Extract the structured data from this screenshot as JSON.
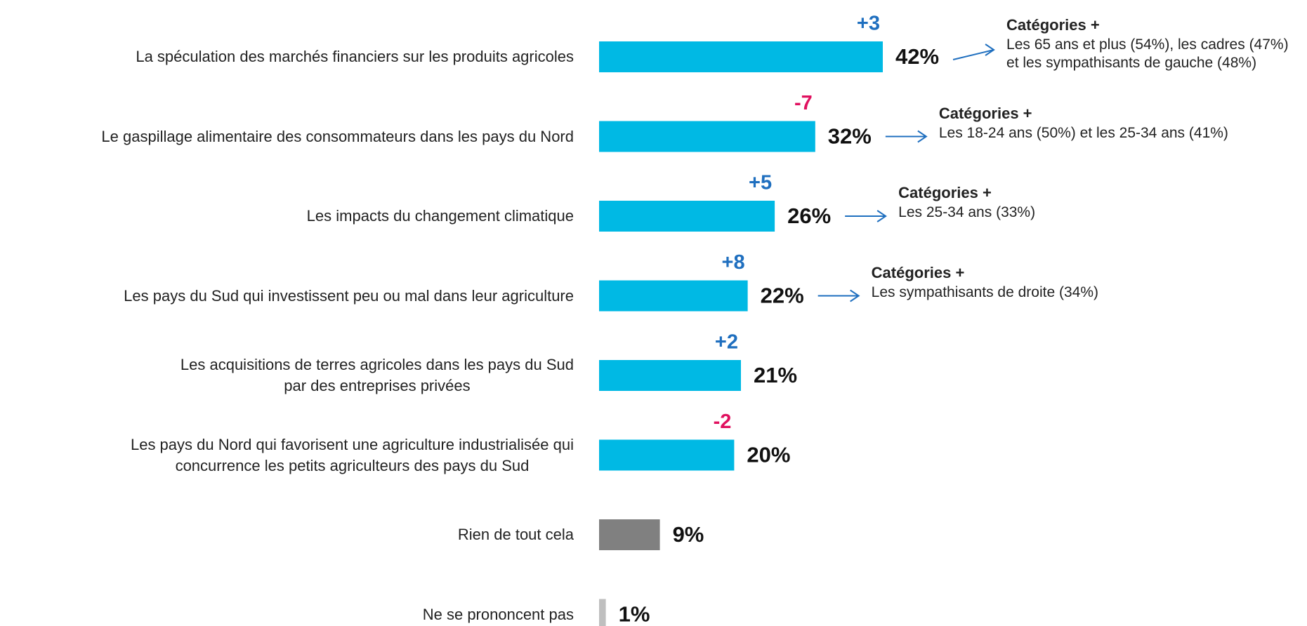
{
  "chart_data": {
    "type": "bar",
    "orientation": "horizontal",
    "categories": [
      "La spéculation des marchés financiers sur les produits agricoles",
      "Le gaspillage alimentaire des consommateurs dans les pays du Nord",
      "Les impacts du changement climatique",
      "Les pays du Sud qui investissent peu ou mal dans leur agriculture",
      "Les acquisitions de terres agricoles dans les pays du Sud\npar des entreprises privées",
      "Les pays du Nord qui favorisent une agriculture industrialisée qui\nconcurrence les petits agriculteurs des pays du Sud",
      "Rien de tout cela",
      "Ne se prononcent pas"
    ],
    "values": [
      42,
      32,
      26,
      22,
      21,
      20,
      9,
      1
    ],
    "value_labels": [
      "42%",
      "32%",
      "26%",
      "22%",
      "21%",
      "20%",
      "9%",
      "1%"
    ],
    "colors": [
      "#00b9e4",
      "#00b9e4",
      "#00b9e4",
      "#00b9e4",
      "#00b9e4",
      "#00b9e4",
      "#808080",
      "#bfbfbf"
    ],
    "changes": [
      "+3",
      "-7",
      "+5",
      "+8",
      "+2",
      "-2",
      null,
      null
    ],
    "change_colors": {
      "positive": "#1f6fbf",
      "negative": "#e0115f"
    },
    "xlim": [
      0,
      42
    ],
    "notes": [
      {
        "title": "Catégories +",
        "text": "Les 65 ans et plus (54%), les cadres (47%)\net les sympathisants de gauche (48%)"
      },
      {
        "title": "Catégories +",
        "text": "Les 18-24 ans (50%) et les 25-34 ans (41%)"
      },
      {
        "title": "Catégories +",
        "text": "Les 25-34 ans (33%)"
      },
      {
        "title": "Catégories +",
        "text": "Les sympathisants de droite (34%)"
      },
      null,
      null,
      null,
      null
    ],
    "arrow_color": "#1f6fbf"
  }
}
